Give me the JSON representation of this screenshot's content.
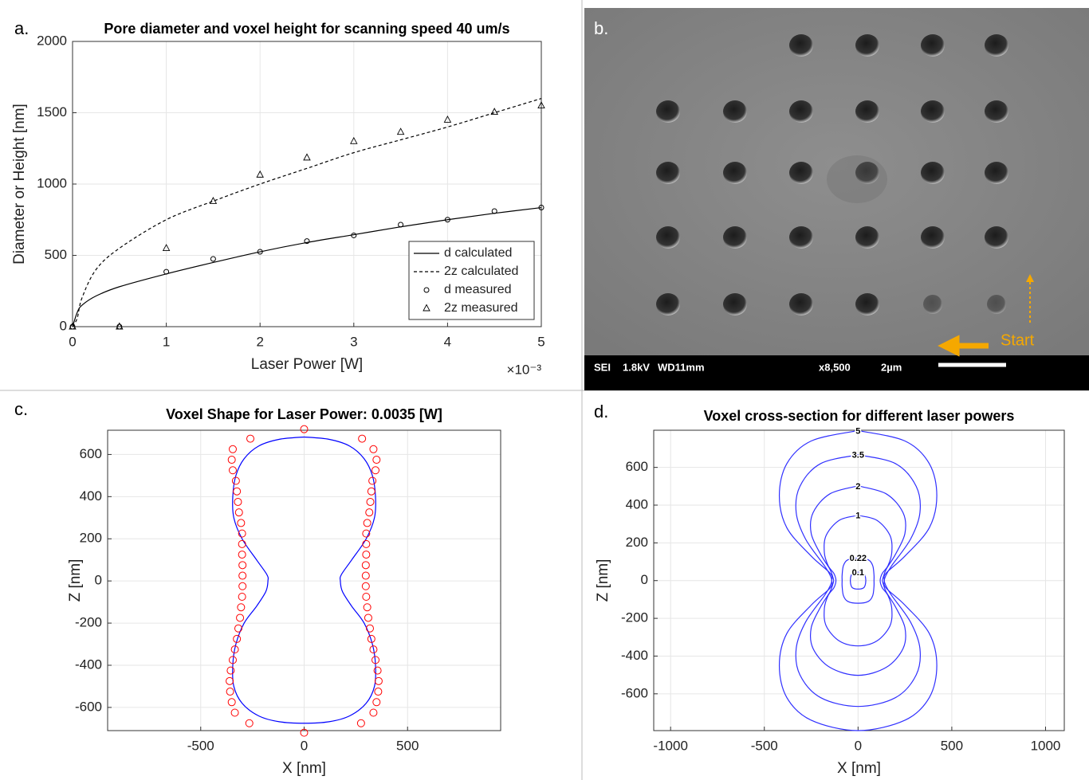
{
  "chart_data": [
    {
      "type": "line",
      "label": "a.",
      "title": "Pore diameter and voxel height for scanning speed 40 um/s",
      "x_label": "Laser Power [W]",
      "y_label": "Diameter or Height [nm]",
      "x_exponent": "×10⁻³",
      "xlim": [
        0,
        5
      ],
      "xticks": [
        0,
        1,
        2,
        3,
        4,
        5
      ],
      "ylim": [
        0,
        2000
      ],
      "yticks": [
        0,
        500,
        1000,
        1500,
        2000
      ],
      "grid": true,
      "legend": "lower right",
      "series": [
        {
          "name": "d calculated",
          "color": "#000000",
          "style": "solid",
          "marker": null,
          "x": [
            0,
            0.05,
            0.1,
            0.25,
            0.5,
            1,
            1.5,
            2,
            2.5,
            3,
            3.5,
            4,
            4.5,
            5
          ],
          "values": [
            0,
            100,
            150,
            215,
            280,
            370,
            450,
            525,
            590,
            645,
            700,
            750,
            795,
            835
          ]
        },
        {
          "name": "2z calculated",
          "color": "#000000",
          "style": "dashed",
          "marker": null,
          "x": [
            0,
            0.05,
            0.1,
            0.25,
            0.5,
            1,
            1.5,
            2,
            2.5,
            3,
            3.5,
            4,
            4.5,
            5
          ],
          "values": [
            0,
            60,
            200,
            400,
            550,
            750,
            880,
            1000,
            1110,
            1220,
            1310,
            1400,
            1500,
            1600
          ]
        },
        {
          "name": "d measured",
          "color": "#000000",
          "style": "none",
          "marker": "o",
          "x": [
            0,
            0.5,
            1,
            1.5,
            2,
            2.5,
            3,
            3.5,
            4,
            4.5,
            5
          ],
          "values": [
            0,
            0,
            385,
            475,
            525,
            600,
            640,
            715,
            750,
            810,
            835
          ]
        },
        {
          "name": "2z measured",
          "color": "#000000",
          "style": "none",
          "marker": "^",
          "x": [
            0,
            0.5,
            1,
            1.5,
            2,
            2.5,
            3,
            3.5,
            4,
            4.5,
            5
          ],
          "values": [
            0,
            0,
            550,
            880,
            1065,
            1185,
            1300,
            1365,
            1450,
            1505,
            1550
          ]
        }
      ]
    },
    {
      "type": "line",
      "label": "c.",
      "title": "Voxel Shape for Laser Power: 0.0035 [W]",
      "x_label": "X [nm]",
      "y_label": "Z [nm]",
      "xlim": [
        -950,
        950
      ],
      "xticks": [
        -500,
        0,
        500
      ],
      "ylim": [
        -710,
        715
      ],
      "yticks": [
        -600,
        -400,
        -200,
        0,
        200,
        400,
        600
      ],
      "grid": true,
      "series": [
        {
          "color": "#0000ff",
          "style": "solid",
          "marker": null,
          "x": [
            0,
            120,
            220,
            290,
            330,
            345,
            340,
            300,
            230,
            180,
            175,
            185,
            230,
            290,
            330,
            345,
            340,
            300,
            220,
            120,
            0,
            -120,
            -220,
            -300,
            -340,
            -345,
            -330,
            -290,
            -230,
            -185,
            -175,
            -180,
            -230,
            -300,
            -340,
            -345,
            -330,
            -290,
            -220,
            -120,
            0
          ],
          "values": [
            683,
            672,
            640,
            580,
            500,
            400,
            300,
            200,
            100,
            30,
            0,
            -50,
            -120,
            -200,
            -300,
            -400,
            -500,
            -580,
            -640,
            -668,
            -675,
            -668,
            -640,
            -580,
            -500,
            -400,
            -300,
            -200,
            -120,
            -50,
            0,
            30,
            100,
            200,
            300,
            400,
            500,
            580,
            640,
            672,
            683
          ]
        },
        {
          "color": "#ff0000",
          "style": "none",
          "marker": "o",
          "x": [
            0,
            280,
            335,
            350,
            345,
            330,
            325,
            320,
            315,
            305,
            300,
            300,
            300,
            298,
            298,
            298,
            300,
            305,
            310,
            318,
            325,
            335,
            345,
            355,
            360,
            358,
            350,
            335,
            275,
            0,
            -260,
            -345,
            -350,
            -345,
            -330,
            -325,
            -320,
            -315,
            -305,
            -300,
            -300,
            -300,
            -298,
            -298,
            -298,
            -300,
            -305,
            -310,
            -318,
            -325,
            -335,
            -345,
            -355,
            -360,
            -358,
            -350,
            -335,
            -265
          ],
          "values": [
            720,
            675,
            625,
            575,
            525,
            475,
            425,
            375,
            325,
            275,
            225,
            175,
            125,
            75,
            25,
            -25,
            -75,
            -125,
            -175,
            -225,
            -275,
            -325,
            -375,
            -425,
            -475,
            -525,
            -575,
            -625,
            -675,
            -720,
            675,
            625,
            575,
            525,
            475,
            425,
            375,
            325,
            275,
            225,
            175,
            125,
            75,
            25,
            -25,
            -75,
            -125,
            -175,
            -225,
            -275,
            -325,
            -375,
            -425,
            -475,
            -525,
            -575,
            -625,
            -675
          ]
        }
      ]
    },
    {
      "type": "line",
      "label": "d.",
      "title": "Voxel cross-section for different laser powers",
      "x_label": "X [nm]",
      "y_label": "Z [nm]",
      "xlim": [
        -1090,
        1100
      ],
      "xticks": [
        -1000,
        -500,
        0,
        500,
        1000
      ],
      "ylim": [
        -795,
        797
      ],
      "yticks": [
        -600,
        -400,
        -200,
        0,
        200,
        400,
        600
      ],
      "grid": true,
      "contour_labels": true,
      "series": [
        {
          "name": "5",
          "color": "#3030ff",
          "style": "solid",
          "marker": null,
          "x": [
            0,
            250,
            380,
            420,
            380,
            250,
            150,
            140,
            150,
            250,
            380,
            420,
            380,
            250,
            0,
            -250,
            -380,
            -420,
            -380,
            -250,
            -150,
            -140,
            -150,
            -250,
            -380,
            -420,
            -380,
            -250,
            0
          ],
          "values": [
            795,
            740,
            620,
            450,
            280,
            130,
            40,
            0,
            -40,
            -130,
            -280,
            -450,
            -620,
            -740,
            -795,
            -740,
            -620,
            -450,
            -280,
            -130,
            -40,
            0,
            40,
            130,
            280,
            450,
            620,
            740,
            795
          ]
        },
        {
          "name": "3.5",
          "color": "#3030ff",
          "style": "solid",
          "marker": null,
          "x": [
            0,
            200,
            310,
            330,
            280,
            180,
            150,
            140,
            150,
            180,
            280,
            330,
            310,
            200,
            0,
            -200,
            -310,
            -330,
            -280,
            -180,
            -150,
            -140,
            -150,
            -180,
            -280,
            -330,
            -310,
            -200,
            0
          ],
          "values": [
            667,
            620,
            500,
            360,
            220,
            80,
            30,
            0,
            -30,
            -80,
            -220,
            -360,
            -500,
            -620,
            -667,
            -620,
            -500,
            -360,
            -220,
            -80,
            -30,
            0,
            30,
            80,
            220,
            360,
            500,
            620,
            667
          ]
        },
        {
          "name": "2",
          "color": "#3030ff",
          "style": "solid",
          "marker": null,
          "x": [
            0,
            150,
            240,
            250,
            200,
            150,
            135,
            130,
            135,
            150,
            200,
            250,
            240,
            150,
            0,
            -150,
            -240,
            -250,
            -200,
            -150,
            -135,
            -130,
            -135,
            -150,
            -200,
            -250,
            -240,
            -150,
            0
          ],
          "values": [
            502,
            460,
            360,
            250,
            140,
            60,
            20,
            0,
            -20,
            -60,
            -140,
            -250,
            -360,
            -460,
            -502,
            -460,
            -360,
            -250,
            -140,
            -60,
            -20,
            0,
            20,
            60,
            140,
            250,
            360,
            460,
            502
          ]
        },
        {
          "name": "1",
          "color": "#3030ff",
          "style": "solid",
          "marker": null,
          "x": [
            0,
            100,
            170,
            180,
            160,
            130,
            120,
            118,
            120,
            130,
            160,
            180,
            170,
            100,
            0,
            -100,
            -170,
            -180,
            -160,
            -130,
            -120,
            -118,
            -120,
            -130,
            -160,
            -180,
            -170,
            -100,
            0
          ],
          "values": [
            346,
            320,
            240,
            150,
            80,
            40,
            15,
            0,
            -15,
            -40,
            -80,
            -150,
            -240,
            -320,
            -346,
            -320,
            -240,
            -150,
            -80,
            -40,
            -15,
            0,
            15,
            40,
            80,
            150,
            240,
            320,
            346
          ]
        },
        {
          "name": "0.22",
          "color": "#3030ff",
          "style": "solid",
          "marker": null,
          "x": [
            0,
            55,
            78,
            85,
            85,
            85,
            78,
            55,
            0,
            -55,
            -78,
            -85,
            -85,
            -85,
            -78,
            -55,
            0
          ],
          "values": [
            120,
            110,
            80,
            30,
            0,
            -30,
            -80,
            -110,
            -120,
            -110,
            -80,
            -30,
            0,
            30,
            80,
            110,
            120
          ]
        },
        {
          "name": "0.1",
          "color": "#3030ff",
          "style": "solid",
          "marker": null,
          "x": [
            0,
            30,
            40,
            40,
            30,
            0,
            -30,
            -40,
            -40,
            -30,
            0
          ],
          "values": [
            45,
            38,
            15,
            -15,
            -38,
            -45,
            -38,
            -15,
            15,
            38,
            45
          ]
        }
      ]
    }
  ],
  "image": {
    "label": "b.",
    "fields": [
      "SEI",
      "1.8kV",
      "WD11mm",
      "x8,500",
      "2µm"
    ],
    "annotation": "Start"
  }
}
